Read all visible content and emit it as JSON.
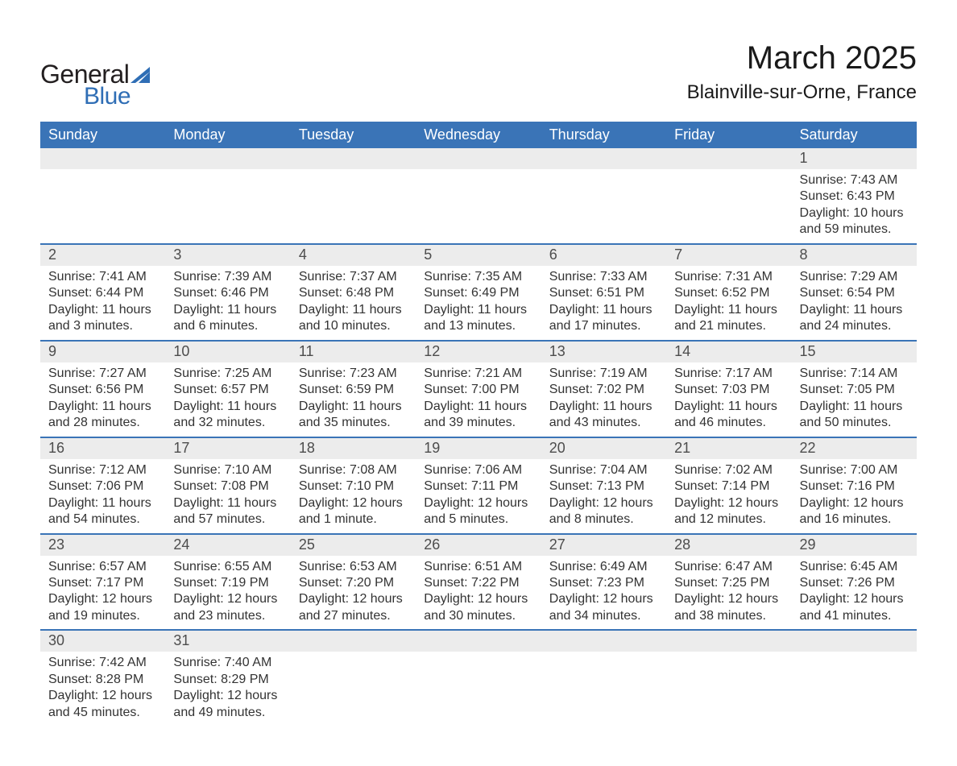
{
  "logo": {
    "text_general": "General",
    "text_blue": "Blue",
    "sail_color": "#2f6eb5",
    "general_color": "#231f20"
  },
  "title": "March 2025",
  "location": "Blainville-sur-Orne, France",
  "colors": {
    "header_bg": "#3a74b7",
    "header_text": "#ffffff",
    "daynum_bg": "#ececec",
    "row_divider": "#3a74b7",
    "body_text": "#333333",
    "daynum_text": "#4d4d4d",
    "page_bg": "#ffffff"
  },
  "typography": {
    "title_fontsize": 40,
    "location_fontsize": 24,
    "header_fontsize": 18,
    "daynum_fontsize": 18,
    "body_fontsize": 16
  },
  "day_headers": [
    "Sunday",
    "Monday",
    "Tuesday",
    "Wednesday",
    "Thursday",
    "Friday",
    "Saturday"
  ],
  "weeks": [
    [
      {
        "n": "",
        "sunrise": "",
        "sunset": "",
        "daylight": ""
      },
      {
        "n": "",
        "sunrise": "",
        "sunset": "",
        "daylight": ""
      },
      {
        "n": "",
        "sunrise": "",
        "sunset": "",
        "daylight": ""
      },
      {
        "n": "",
        "sunrise": "",
        "sunset": "",
        "daylight": ""
      },
      {
        "n": "",
        "sunrise": "",
        "sunset": "",
        "daylight": ""
      },
      {
        "n": "",
        "sunrise": "",
        "sunset": "",
        "daylight": ""
      },
      {
        "n": "1",
        "sunrise": "Sunrise: 7:43 AM",
        "sunset": "Sunset: 6:43 PM",
        "daylight": "Daylight: 10 hours and 59 minutes."
      }
    ],
    [
      {
        "n": "2",
        "sunrise": "Sunrise: 7:41 AM",
        "sunset": "Sunset: 6:44 PM",
        "daylight": "Daylight: 11 hours and 3 minutes."
      },
      {
        "n": "3",
        "sunrise": "Sunrise: 7:39 AM",
        "sunset": "Sunset: 6:46 PM",
        "daylight": "Daylight: 11 hours and 6 minutes."
      },
      {
        "n": "4",
        "sunrise": "Sunrise: 7:37 AM",
        "sunset": "Sunset: 6:48 PM",
        "daylight": "Daylight: 11 hours and 10 minutes."
      },
      {
        "n": "5",
        "sunrise": "Sunrise: 7:35 AM",
        "sunset": "Sunset: 6:49 PM",
        "daylight": "Daylight: 11 hours and 13 minutes."
      },
      {
        "n": "6",
        "sunrise": "Sunrise: 7:33 AM",
        "sunset": "Sunset: 6:51 PM",
        "daylight": "Daylight: 11 hours and 17 minutes."
      },
      {
        "n": "7",
        "sunrise": "Sunrise: 7:31 AM",
        "sunset": "Sunset: 6:52 PM",
        "daylight": "Daylight: 11 hours and 21 minutes."
      },
      {
        "n": "8",
        "sunrise": "Sunrise: 7:29 AM",
        "sunset": "Sunset: 6:54 PM",
        "daylight": "Daylight: 11 hours and 24 minutes."
      }
    ],
    [
      {
        "n": "9",
        "sunrise": "Sunrise: 7:27 AM",
        "sunset": "Sunset: 6:56 PM",
        "daylight": "Daylight: 11 hours and 28 minutes."
      },
      {
        "n": "10",
        "sunrise": "Sunrise: 7:25 AM",
        "sunset": "Sunset: 6:57 PM",
        "daylight": "Daylight: 11 hours and 32 minutes."
      },
      {
        "n": "11",
        "sunrise": "Sunrise: 7:23 AM",
        "sunset": "Sunset: 6:59 PM",
        "daylight": "Daylight: 11 hours and 35 minutes."
      },
      {
        "n": "12",
        "sunrise": "Sunrise: 7:21 AM",
        "sunset": "Sunset: 7:00 PM",
        "daylight": "Daylight: 11 hours and 39 minutes."
      },
      {
        "n": "13",
        "sunrise": "Sunrise: 7:19 AM",
        "sunset": "Sunset: 7:02 PM",
        "daylight": "Daylight: 11 hours and 43 minutes."
      },
      {
        "n": "14",
        "sunrise": "Sunrise: 7:17 AM",
        "sunset": "Sunset: 7:03 PM",
        "daylight": "Daylight: 11 hours and 46 minutes."
      },
      {
        "n": "15",
        "sunrise": "Sunrise: 7:14 AM",
        "sunset": "Sunset: 7:05 PM",
        "daylight": "Daylight: 11 hours and 50 minutes."
      }
    ],
    [
      {
        "n": "16",
        "sunrise": "Sunrise: 7:12 AM",
        "sunset": "Sunset: 7:06 PM",
        "daylight": "Daylight: 11 hours and 54 minutes."
      },
      {
        "n": "17",
        "sunrise": "Sunrise: 7:10 AM",
        "sunset": "Sunset: 7:08 PM",
        "daylight": "Daylight: 11 hours and 57 minutes."
      },
      {
        "n": "18",
        "sunrise": "Sunrise: 7:08 AM",
        "sunset": "Sunset: 7:10 PM",
        "daylight": "Daylight: 12 hours and 1 minute."
      },
      {
        "n": "19",
        "sunrise": "Sunrise: 7:06 AM",
        "sunset": "Sunset: 7:11 PM",
        "daylight": "Daylight: 12 hours and 5 minutes."
      },
      {
        "n": "20",
        "sunrise": "Sunrise: 7:04 AM",
        "sunset": "Sunset: 7:13 PM",
        "daylight": "Daylight: 12 hours and 8 minutes."
      },
      {
        "n": "21",
        "sunrise": "Sunrise: 7:02 AM",
        "sunset": "Sunset: 7:14 PM",
        "daylight": "Daylight: 12 hours and 12 minutes."
      },
      {
        "n": "22",
        "sunrise": "Sunrise: 7:00 AM",
        "sunset": "Sunset: 7:16 PM",
        "daylight": "Daylight: 12 hours and 16 minutes."
      }
    ],
    [
      {
        "n": "23",
        "sunrise": "Sunrise: 6:57 AM",
        "sunset": "Sunset: 7:17 PM",
        "daylight": "Daylight: 12 hours and 19 minutes."
      },
      {
        "n": "24",
        "sunrise": "Sunrise: 6:55 AM",
        "sunset": "Sunset: 7:19 PM",
        "daylight": "Daylight: 12 hours and 23 minutes."
      },
      {
        "n": "25",
        "sunrise": "Sunrise: 6:53 AM",
        "sunset": "Sunset: 7:20 PM",
        "daylight": "Daylight: 12 hours and 27 minutes."
      },
      {
        "n": "26",
        "sunrise": "Sunrise: 6:51 AM",
        "sunset": "Sunset: 7:22 PM",
        "daylight": "Daylight: 12 hours and 30 minutes."
      },
      {
        "n": "27",
        "sunrise": "Sunrise: 6:49 AM",
        "sunset": "Sunset: 7:23 PM",
        "daylight": "Daylight: 12 hours and 34 minutes."
      },
      {
        "n": "28",
        "sunrise": "Sunrise: 6:47 AM",
        "sunset": "Sunset: 7:25 PM",
        "daylight": "Daylight: 12 hours and 38 minutes."
      },
      {
        "n": "29",
        "sunrise": "Sunrise: 6:45 AM",
        "sunset": "Sunset: 7:26 PM",
        "daylight": "Daylight: 12 hours and 41 minutes."
      }
    ],
    [
      {
        "n": "30",
        "sunrise": "Sunrise: 7:42 AM",
        "sunset": "Sunset: 8:28 PM",
        "daylight": "Daylight: 12 hours and 45 minutes."
      },
      {
        "n": "31",
        "sunrise": "Sunrise: 7:40 AM",
        "sunset": "Sunset: 8:29 PM",
        "daylight": "Daylight: 12 hours and 49 minutes."
      },
      {
        "n": "",
        "sunrise": "",
        "sunset": "",
        "daylight": ""
      },
      {
        "n": "",
        "sunrise": "",
        "sunset": "",
        "daylight": ""
      },
      {
        "n": "",
        "sunrise": "",
        "sunset": "",
        "daylight": ""
      },
      {
        "n": "",
        "sunrise": "",
        "sunset": "",
        "daylight": ""
      },
      {
        "n": "",
        "sunrise": "",
        "sunset": "",
        "daylight": ""
      }
    ]
  ]
}
